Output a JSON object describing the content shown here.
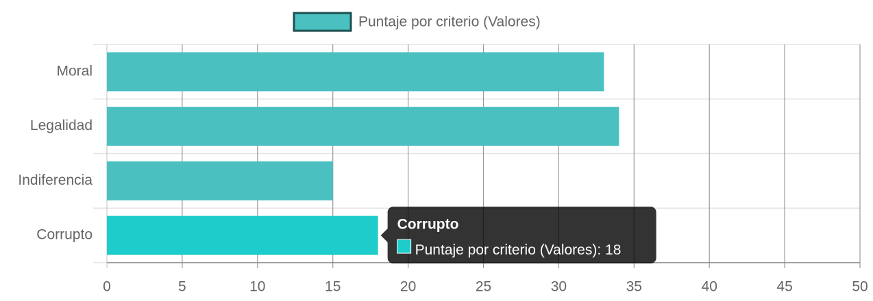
{
  "chart_data": {
    "type": "hbar",
    "categories": [
      "Moral",
      "Legalidad",
      "Indiferencia",
      "Corrupto"
    ],
    "series": [
      {
        "name": "Puntaje por criterio (Valores)",
        "color": "#4bc0c0",
        "values": [
          33,
          34,
          15,
          18
        ]
      }
    ],
    "xlim": [
      0,
      50
    ],
    "xticks": [
      0,
      5,
      10,
      15,
      20,
      25,
      30,
      35,
      40,
      45,
      50
    ],
    "grid": true,
    "legend": "top",
    "tooltip_index": 3,
    "hover_color": "#1ecdcb"
  }
}
